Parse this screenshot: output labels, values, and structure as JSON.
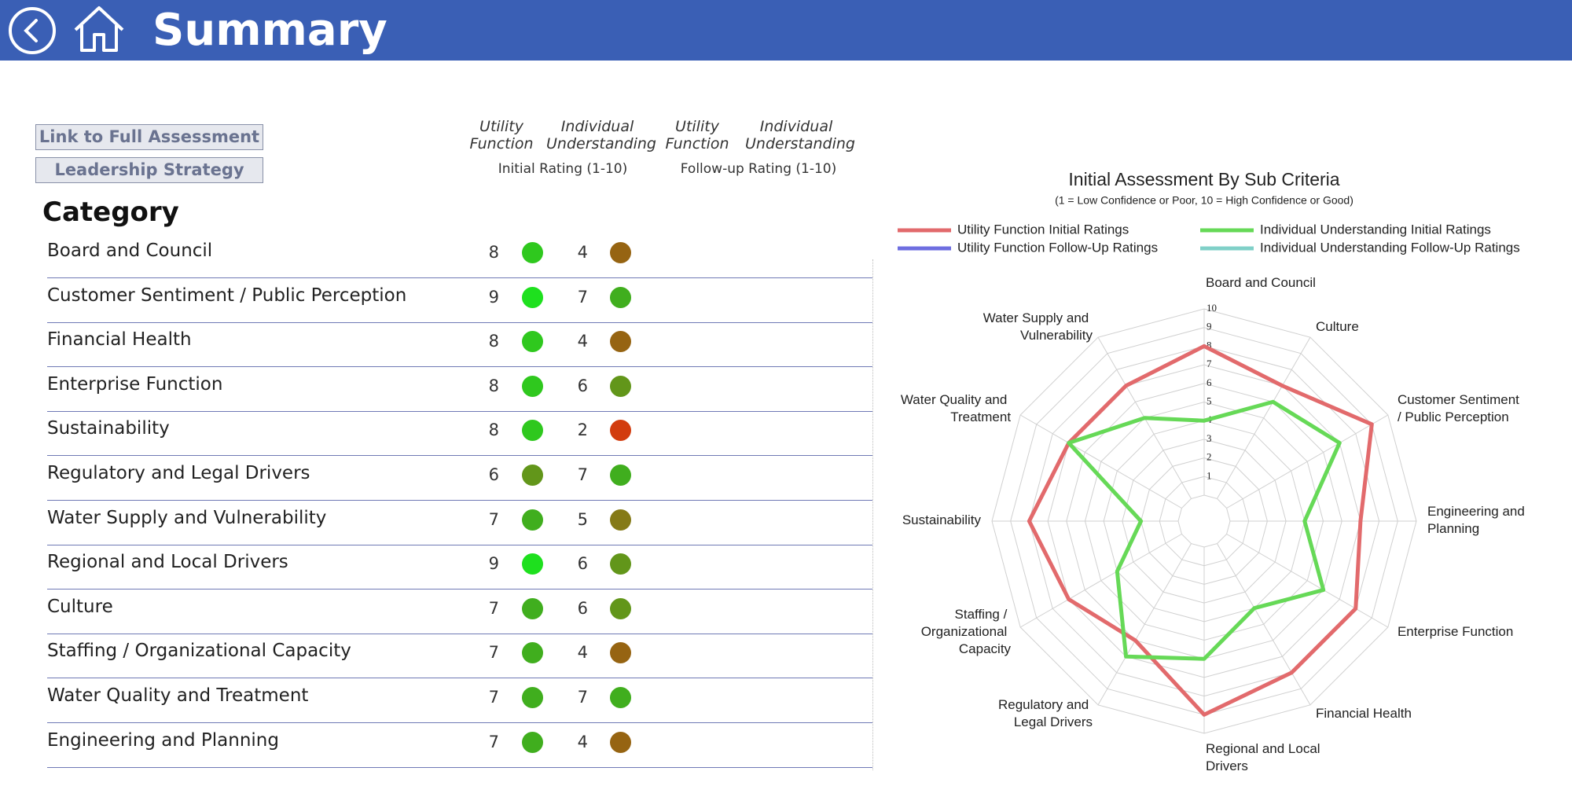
{
  "header": {
    "title": "Summary"
  },
  "buttons": [
    "Link to Full Assessment",
    "Leadership Strategy"
  ],
  "columns": [
    {
      "label": "Initial Rating (1-10)",
      "items": [
        "Utility Function",
        "Individual Understanding"
      ]
    },
    {
      "label": "Follow-up Rating (1-10)",
      "items": [
        "Utility Function",
        "Individual Understanding"
      ]
    }
  ],
  "table": {
    "heading": "Category",
    "rows": [
      [
        "Board and Council",
        8,
        4
      ],
      [
        "Customer Sentiment / Public Perception",
        9,
        7
      ],
      [
        "Financial Health",
        8,
        4
      ],
      [
        "Enterprise Function",
        8,
        6
      ],
      [
        "Sustainability",
        8,
        2
      ],
      [
        "Regulatory and Legal Drivers",
        6,
        7
      ],
      [
        "Water Supply and Vulnerability",
        7,
        5
      ],
      [
        "Regional and Local Drivers",
        9,
        6
      ],
      [
        "Culture",
        7,
        6
      ],
      [
        "Staffing / Organizational Capacity",
        7,
        4
      ],
      [
        "Water Quality and Treatment",
        7,
        7
      ],
      [
        "Engineering and Planning",
        7,
        4
      ]
    ]
  },
  "rating_colors": {
    "2": "#d23c0e",
    "4": "#966412",
    "5": "#857a17",
    "6": "#62961a",
    "7": "#40ae1e",
    "8": "#2fc81e",
    "9": "#1ee01e"
  },
  "chart_data": {
    "type": "radar",
    "title": "Initial Assessment By Sub Criteria",
    "subtitle": "(1 = Low Confidence or Poor, 10 = High Confidence or Good)",
    "categories": [
      "Board and Council",
      "Culture",
      "Customer Sentiment / Public Perception",
      "Engineering and Planning",
      "Enterprise Function",
      "Financial Health",
      "Regional and Local Drivers",
      "Regulatory and Legal Drivers",
      "Staffing / Organizational Capacity",
      "Sustainability",
      "Water Quality and Treatment",
      "Water Supply and Vulnerability"
    ],
    "series": [
      {
        "name": "Utility Function Initial Ratings",
        "color": "#e26a6c",
        "values": [
          8,
          7,
          9,
          7,
          8,
          8,
          9,
          6,
          7,
          8,
          7,
          7
        ]
      },
      {
        "name": "Individual Understanding Initial Ratings",
        "color": "#66d957",
        "values": [
          4,
          6,
          7,
          4,
          6,
          4,
          6,
          7,
          4,
          2,
          7,
          5
        ]
      },
      {
        "name": "Utility Function Follow-Up Ratings",
        "color": "#6e6ee0",
        "values": [
          null,
          null,
          null,
          null,
          null,
          null,
          null,
          null,
          null,
          null,
          null,
          null
        ]
      },
      {
        "name": "Individual Understanding Follow-Up Ratings",
        "color": "#80d0c8",
        "values": [
          null,
          null,
          null,
          null,
          null,
          null,
          null,
          null,
          null,
          null,
          null,
          null
        ]
      }
    ],
    "rlim": [
      0,
      10
    ],
    "rticks": [
      1,
      2,
      3,
      4,
      5,
      6,
      7,
      8,
      9,
      10
    ],
    "grid": true
  }
}
